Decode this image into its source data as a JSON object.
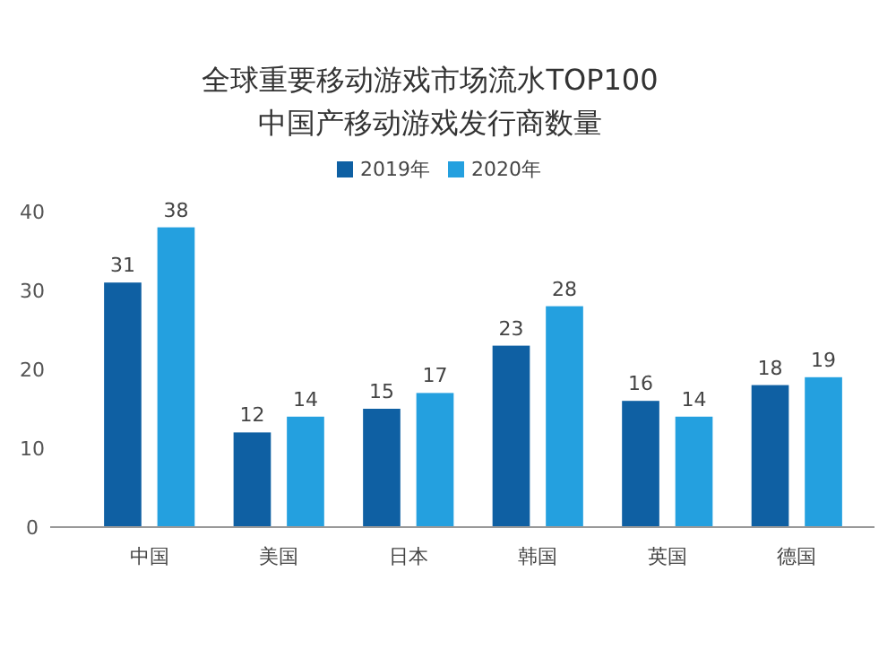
{
  "chart_data": {
    "type": "bar",
    "title": "全球重要移动游戏市场流水TOP100中国产移动游戏发行商数量",
    "categories": [
      "中国",
      "美国",
      "日本",
      "韩国",
      "英国",
      "德国"
    ],
    "series": [
      {
        "name": "2019年",
        "color": "#0f60a3",
        "values": [
          31,
          12,
          15,
          23,
          16,
          18
        ]
      },
      {
        "name": "2020年",
        "color": "#24a0df",
        "values": [
          38,
          14,
          17,
          28,
          14,
          19
        ]
      }
    ],
    "ylim": [
      0,
      40
    ],
    "yticks": [
      0,
      10,
      20,
      30,
      40
    ],
    "grid": false,
    "legend": "top",
    "data_labels": true
  }
}
